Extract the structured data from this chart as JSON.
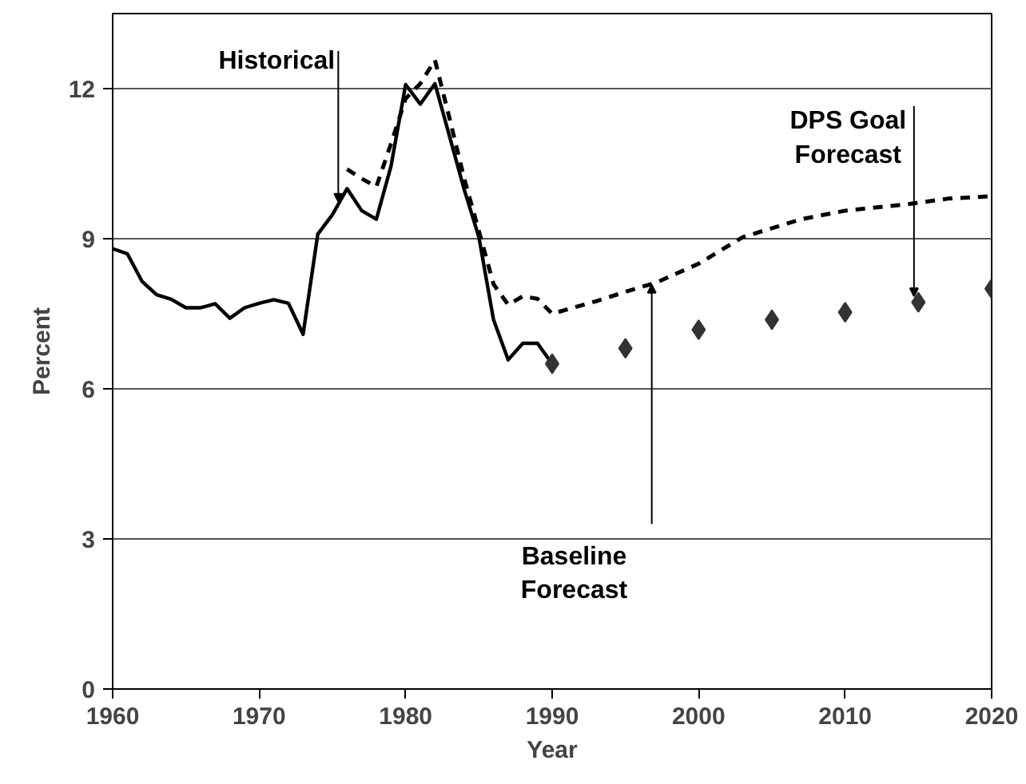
{
  "chart_data": {
    "type": "line",
    "xlabel": "Year",
    "ylabel": "Percent",
    "xlim": [
      1960,
      2020
    ],
    "xticks": [
      1960,
      1970,
      1980,
      1990,
      2000,
      2010,
      2020
    ],
    "ylim": [
      0,
      13.5
    ],
    "yticks": [
      0,
      3,
      6,
      9,
      12
    ],
    "grid": "y",
    "series": [
      {
        "name": "Historical",
        "line_style": "solid",
        "marker": "none",
        "color": "#000000",
        "x": [
          1960,
          1961,
          1962,
          1963,
          1964,
          1965,
          1966,
          1967,
          1968,
          1969,
          1970,
          1971,
          1972,
          1973,
          1974,
          1975,
          1976,
          1977,
          1978,
          1979,
          1980,
          1981,
          1982,
          1983,
          1984,
          1985,
          1986,
          1987,
          1988,
          1989,
          1990
        ],
        "values": [
          8.8,
          8.7,
          8.15,
          7.88,
          7.79,
          7.62,
          7.62,
          7.7,
          7.41,
          7.62,
          7.71,
          7.78,
          7.71,
          7.09,
          9.09,
          9.48,
          10.0,
          9.56,
          9.39,
          10.45,
          12.08,
          11.69,
          12.1,
          11.04,
          9.98,
          9.03,
          7.38,
          6.58,
          6.91,
          6.91,
          6.5
        ]
      },
      {
        "name": "Baseline Forecast",
        "line_style": "dashed",
        "marker": "none",
        "color": "#000000",
        "x": [
          1976,
          1977,
          1978,
          1979,
          1980,
          1981,
          1982,
          1983,
          1984,
          1985,
          1986,
          1987,
          1988,
          1989,
          1990,
          1993,
          1996,
          1997,
          2000,
          2003,
          2007,
          2010,
          2014,
          2017,
          2020
        ],
        "values": [
          10.39,
          10.2,
          10.04,
          10.9,
          11.8,
          12.1,
          12.57,
          11.4,
          10.2,
          9.15,
          8.09,
          7.68,
          7.85,
          7.8,
          7.5,
          7.75,
          8.03,
          8.11,
          8.5,
          9.03,
          9.39,
          9.56,
          9.68,
          9.8,
          9.85
        ]
      },
      {
        "name": "DPS Goal Forecast",
        "type": "scatter",
        "marker": "diamond",
        "color": "#333333",
        "x": [
          1990,
          1995,
          2000,
          2005,
          2010,
          2015,
          2020
        ],
        "values": [
          6.5,
          6.81,
          7.18,
          7.38,
          7.53,
          7.73,
          8.0
        ]
      }
    ]
  }
}
